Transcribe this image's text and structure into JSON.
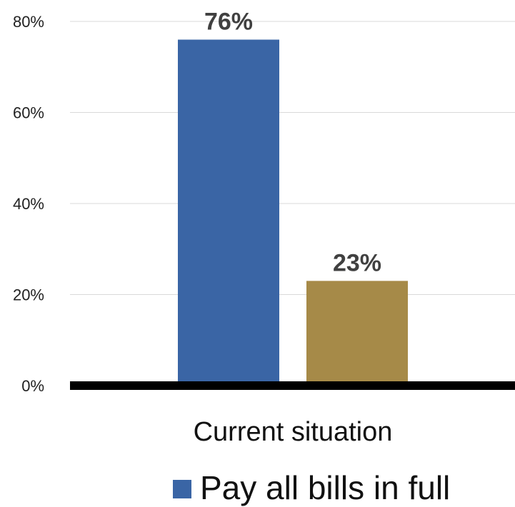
{
  "chart_data": {
    "type": "bar",
    "categories": [
      "Current situation"
    ],
    "series": [
      {
        "name": "Pay all bills in full",
        "values": [
          76
        ],
        "color": "#3a65a5"
      },
      {
        "values": [
          23
        ],
        "color": "#a68a48"
      }
    ],
    "data_labels": [
      "76%",
      "23%"
    ],
    "y_ticks": [
      "0%",
      "20%",
      "40%",
      "60%",
      "80%"
    ],
    "ylim": [
      0,
      80
    ],
    "grid": true,
    "legend": {
      "placement": "bottom",
      "entries": [
        "Pay all bills in full"
      ]
    },
    "axis_color": "#000000",
    "grid_color": "#d9d9d9"
  }
}
